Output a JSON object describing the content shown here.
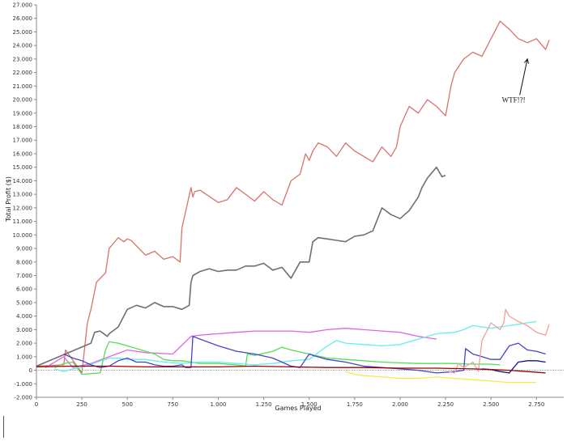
{
  "chart_data": {
    "type": "line",
    "title": "",
    "xlabel": "Games Played",
    "ylabel": "Total Profit ($)",
    "xlim": [
      0,
      2900
    ],
    "ylim": [
      -2000,
      27000
    ],
    "x_ticks": [
      0,
      250,
      500,
      750,
      1000,
      1250,
      1500,
      1750,
      2000,
      2250,
      2500,
      2750
    ],
    "x_tick_labels": [
      "0",
      "250",
      "500",
      "750",
      "1.000",
      "1.250",
      "1.500",
      "1.750",
      "2.000",
      "2.250",
      "2.500",
      "2.750"
    ],
    "y_ticks": [
      -2000,
      -1000,
      0,
      1000,
      2000,
      3000,
      4000,
      5000,
      6000,
      7000,
      8000,
      9000,
      10000,
      11000,
      12000,
      13000,
      14000,
      15000,
      16000,
      17000,
      18000,
      19000,
      20000,
      21000,
      22000,
      23000,
      24000,
      25000,
      26000,
      27000
    ],
    "y_tick_labels": [
      "-2.000",
      "-1.000",
      "0",
      "1.000",
      "2.000",
      "3.000",
      "4.000",
      "5.000",
      "6.000",
      "7.000",
      "8.000",
      "9.000",
      "10.000",
      "11.000",
      "12.000",
      "13.000",
      "14.000",
      "15.000",
      "16.000",
      "17.000",
      "18.000",
      "19.000",
      "20.000",
      "21.000",
      "22.000",
      "23.000",
      "24.000",
      "25.000",
      "26.000",
      "27.000"
    ],
    "grid": false,
    "zero_line": true,
    "annotations": [
      {
        "text": "WTF!?!",
        "x": 2560,
        "y": 19800,
        "arrow_to": [
          2700,
          23000
        ]
      }
    ],
    "series": [
      {
        "color": "#d9736a",
        "x": [
          0,
          150,
          160,
          250,
          280,
          300,
          330,
          380,
          400,
          450,
          480,
          500,
          520,
          600,
          650,
          700,
          750,
          790,
          800,
          850,
          860,
          870,
          900,
          1000,
          1050,
          1100,
          1150,
          1200,
          1250,
          1300,
          1350,
          1400,
          1450,
          1480,
          1500,
          1520,
          1550,
          1600,
          1650,
          1700,
          1750,
          1800,
          1850,
          1900,
          1950,
          1980,
          2000,
          2050,
          2100,
          2150,
          2200,
          2250,
          2280,
          2300,
          2350,
          2400,
          2450,
          2500,
          2550,
          2600,
          2650,
          2700,
          2750,
          2800,
          2820
        ],
        "y": [
          300,
          400,
          1500,
          -200,
          3500,
          4500,
          6500,
          7200,
          9000,
          9800,
          9500,
          9700,
          9600,
          8500,
          8800,
          8200,
          8400,
          8000,
          10500,
          13500,
          12800,
          13200,
          13300,
          12400,
          12600,
          13500,
          13000,
          12500,
          13200,
          12600,
          12200,
          14000,
          14500,
          16000,
          15500,
          16200,
          16800,
          16500,
          15800,
          16800,
          16200,
          15800,
          15400,
          16500,
          15800,
          16500,
          18000,
          19500,
          19000,
          20000,
          19500,
          18800,
          21000,
          22000,
          23000,
          23500,
          23200,
          24500,
          25800,
          25200,
          24500,
          24200,
          24500,
          23700,
          24400
        ]
      },
      {
        "color": "#707070",
        "x": [
          0,
          300,
          320,
          350,
          390,
          400,
          450,
          480,
          500,
          550,
          600,
          650,
          700,
          750,
          800,
          840,
          850,
          860,
          900,
          950,
          1000,
          1050,
          1100,
          1150,
          1200,
          1250,
          1300,
          1350,
          1400,
          1450,
          1500,
          1520,
          1550,
          1600,
          1650,
          1700,
          1750,
          1800,
          1850,
          1900,
          1950,
          2000,
          2050,
          2100,
          2120,
          2150,
          2200,
          2230,
          2250
        ],
        "y": [
          300,
          2000,
          2800,
          2900,
          2500,
          2700,
          3200,
          4000,
          4500,
          4800,
          4600,
          5000,
          4700,
          4700,
          4500,
          4800,
          6500,
          7000,
          7300,
          7500,
          7300,
          7400,
          7400,
          7700,
          7700,
          7900,
          7400,
          7600,
          6800,
          8000,
          8000,
          9500,
          9800,
          9700,
          9600,
          9500,
          9900,
          10000,
          10300,
          12000,
          11500,
          11200,
          11800,
          12800,
          13500,
          14200,
          15000,
          14300,
          14400
        ]
      },
      {
        "color": "#dd66dd",
        "x": [
          50,
          150,
          200,
          300,
          400,
          500,
          600,
          750,
          850,
          900,
          1000,
          1100,
          1200,
          1300,
          1400,
          1500,
          1600,
          1700,
          1800,
          1900,
          2000,
          2100,
          2200
        ],
        "y": [
          200,
          1000,
          200,
          500,
          1000,
          1500,
          1300,
          1200,
          2500,
          2600,
          2700,
          2800,
          2900,
          2900,
          2900,
          2800,
          3000,
          3100,
          3000,
          2900,
          2800,
          2500,
          2300
        ]
      },
      {
        "color": "#55dd55",
        "x": [
          100,
          150,
          200,
          250,
          350,
          380,
          400,
          450,
          500,
          550,
          600,
          650,
          700,
          750,
          800,
          850,
          900,
          1000,
          1100,
          1150,
          1160,
          1200,
          1300,
          1350,
          1400,
          1500,
          1600,
          1700,
          1800,
          1900,
          2000,
          2100,
          2200,
          2300,
          2400,
          2500,
          2550
        ],
        "y": [
          200,
          500,
          600,
          -300,
          -200,
          1500,
          2100,
          2000,
          1800,
          1600,
          1400,
          1200,
          800,
          700,
          700,
          600,
          500,
          500,
          400,
          300,
          1200,
          1100,
          1400,
          1700,
          1500,
          1200,
          900,
          800,
          700,
          600,
          550,
          500,
          500,
          500,
          450,
          450,
          400
        ]
      },
      {
        "color": "#66eeee",
        "x": [
          100,
          150,
          200,
          250,
          400,
          450,
          500,
          600,
          700,
          800,
          900,
          1000,
          1100,
          1200,
          1300,
          1400,
          1500,
          1550,
          1600,
          1650,
          1700,
          1800,
          1900,
          2000,
          2050,
          2100,
          2200,
          2300,
          2350,
          2400,
          2500,
          2550,
          2600,
          2700,
          2750
        ],
        "y": [
          100,
          -100,
          100,
          200,
          900,
          900,
          800,
          800,
          600,
          500,
          600,
          600,
          500,
          400,
          500,
          700,
          800,
          1300,
          1800,
          2200,
          2000,
          1900,
          1800,
          1900,
          2100,
          2300,
          2700,
          2800,
          3000,
          3300,
          3100,
          3200,
          3300,
          3500,
          3600
        ]
      },
      {
        "color": "#4444cc",
        "x": [
          150,
          200,
          250,
          300,
          350,
          400,
          450,
          500,
          550,
          600,
          650,
          700,
          750,
          800,
          820,
          850,
          860,
          900,
          1000,
          1050,
          1100,
          1200,
          1300,
          1350,
          1400,
          1450,
          1500,
          1520,
          1600,
          1700,
          1800,
          1900,
          2000,
          2100,
          2200,
          2300,
          2350,
          2360,
          2400,
          2450,
          2500,
          2550,
          2600,
          2650,
          2700,
          2750,
          2800
        ],
        "y": [
          1200,
          900,
          700,
          400,
          200,
          300,
          700,
          900,
          600,
          600,
          400,
          300,
          300,
          400,
          200,
          200,
          2500,
          2300,
          1800,
          1600,
          1400,
          1200,
          900,
          600,
          300,
          200,
          1200,
          1100,
          800,
          600,
          300,
          200,
          100,
          0,
          -200,
          -100,
          0,
          1600,
          1200,
          1000,
          800,
          800,
          1800,
          2000,
          1500,
          1400,
          1200
        ]
      },
      {
        "color": "#eeee44",
        "x": [
          1700,
          1750,
          1800,
          1900,
          2000,
          2100,
          2200,
          2300,
          2400,
          2500,
          2600,
          2700,
          2750
        ],
        "y": [
          -100,
          -300,
          -400,
          -500,
          -600,
          -600,
          -500,
          -600,
          -700,
          -800,
          -900,
          -900,
          -900
        ]
      },
      {
        "color": "#f0a0a0",
        "x": [
          2270,
          2300,
          2320,
          2350,
          2400,
          2430,
          2450,
          2500,
          2550,
          2570,
          2580,
          2600,
          2650,
          2700,
          2750,
          2800,
          2820
        ],
        "y": [
          -100,
          -200,
          500,
          200,
          600,
          -100,
          2200,
          3500,
          3000,
          3500,
          4500,
          4000,
          3600,
          3300,
          2800,
          2600,
          3400
        ]
      },
      {
        "color": "#111188",
        "x": [
          2450,
          2500,
          2550,
          2600,
          2650,
          2700,
          2750,
          2800
        ],
        "y": [
          100,
          50,
          -100,
          -200,
          600,
          700,
          700,
          600
        ]
      },
      {
        "color": "#990000",
        "x": [
          0,
          200,
          400,
          600,
          800,
          1000,
          1200,
          1400,
          1600,
          1800,
          2000,
          2200,
          2400,
          2500,
          2600,
          2700,
          2800
        ],
        "y": [
          250,
          300,
          300,
          250,
          250,
          250,
          300,
          250,
          200,
          200,
          150,
          150,
          100,
          50,
          0,
          -100,
          -200
        ]
      }
    ]
  }
}
